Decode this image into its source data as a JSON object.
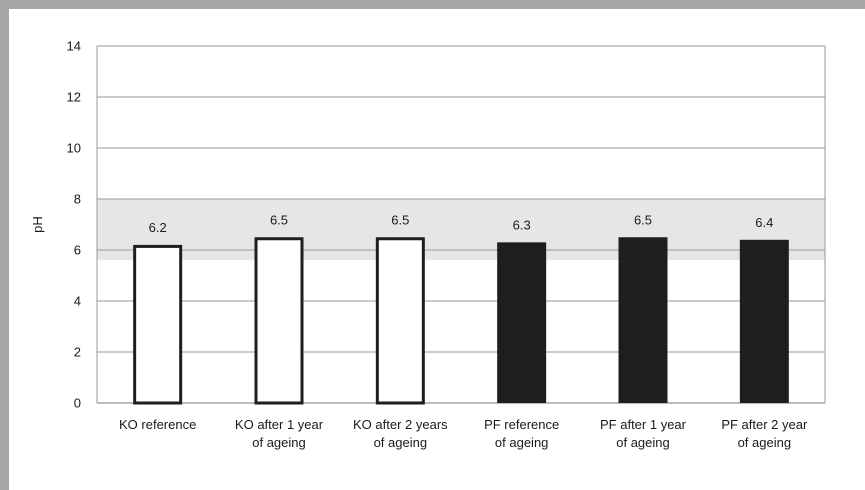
{
  "chart_data": {
    "type": "bar",
    "ylabel": "pH",
    "ylim": [
      0,
      14
    ],
    "yticks": [
      0,
      2,
      4,
      6,
      8,
      10,
      12,
      14
    ],
    "grid": true,
    "reference_band": [
      5.6,
      8.0
    ],
    "categories": [
      [
        "KO reference"
      ],
      [
        "KO after 1 year",
        "of ageing"
      ],
      [
        "KO after 2 years",
        "of ageing"
      ],
      [
        "PF reference",
        "of ageing"
      ],
      [
        "PF after 1 year",
        "of ageing"
      ],
      [
        "PF after 2 year",
        "of ageing"
      ]
    ],
    "values": [
      6.2,
      6.5,
      6.5,
      6.3,
      6.5,
      6.4
    ],
    "data_labels": [
      "6.2",
      "6.5",
      "6.5",
      "6.3",
      "6.5",
      "6.4"
    ],
    "bar_styles": [
      "outline",
      "outline",
      "outline",
      "filled",
      "filled",
      "filled"
    ],
    "colors": {
      "filled": "#1e1e1e",
      "outline": "#1e1e1e",
      "band": "#e6e6e6",
      "grid": "#9a9a9a",
      "frame": "#a6a6a6"
    }
  }
}
